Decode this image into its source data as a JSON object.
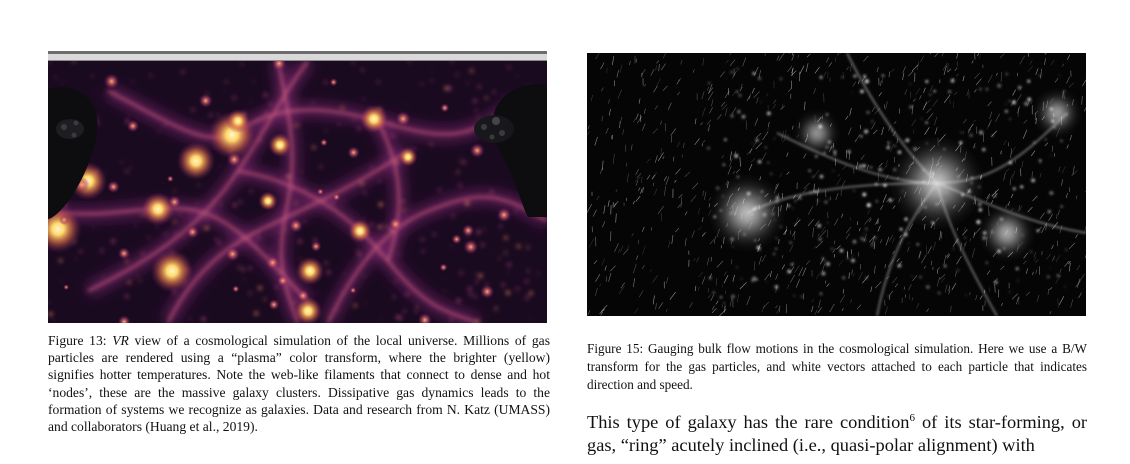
{
  "figure13": {
    "alt_name": "vr cosmological simulation image",
    "label": "Figure 13:",
    "caption_em": "VR",
    "caption_rest": " view of a cosmological simulation of the local universe. Millions of gas particles are rendered using a “plasma” color transform, where the brighter (yellow) signifies hotter temperatures. Note the web-like filaments that connect to dense and hot ‘nodes’, these are the massive galaxy clusters. Dissipative gas dynamics leads to the formation of systems we recognize as galaxies. Data and research from N. Katz (UMASS) and collaborators (Huang et al., 2019)."
  },
  "figure15": {
    "label": "Figure 15:",
    "caption_rest": "  Gauging bulk flow motions in the cosmological simulation. Here we use a B/W transform for the gas particles, and white vectors attached to each particle that indicates direction and speed."
  },
  "body": {
    "text_before": "This type of galaxy has the rare condition",
    "footnote": "6",
    "text_after": " of its star-forming, or gas, “ring” acutely inclined (i.e., quasi-polar alignment) with"
  },
  "colors": {
    "plasma_dark": "#150818",
    "plasma_hot": "#ffd86a",
    "bw_background": "#050505"
  }
}
